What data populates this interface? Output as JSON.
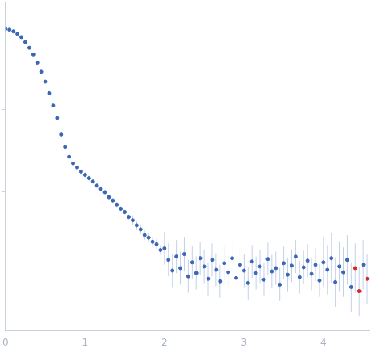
{
  "chart_data": {
    "type": "scatter",
    "x": [
      0.0,
      0.05,
      0.1,
      0.15,
      0.2,
      0.25,
      0.3,
      0.35,
      0.4,
      0.45,
      0.5,
      0.55,
      0.6,
      0.65,
      0.7,
      0.75,
      0.8,
      0.85,
      0.9,
      0.95,
      1.0,
      1.05,
      1.1,
      1.15,
      1.2,
      1.25,
      1.3,
      1.35,
      1.4,
      1.45,
      1.5,
      1.55,
      1.6,
      1.65,
      1.7,
      1.75,
      1.8,
      1.85,
      1.9,
      1.95,
      2.0,
      2.05,
      2.1,
      2.15,
      2.2,
      2.25,
      2.3,
      2.35,
      2.4,
      2.45,
      2.5,
      2.55,
      2.6,
      2.65,
      2.7,
      2.75,
      2.8,
      2.85,
      2.9,
      2.95,
      3.0,
      3.05,
      3.1,
      3.15,
      3.2,
      3.25,
      3.3,
      3.35,
      3.4,
      3.45,
      3.5,
      3.55,
      3.6,
      3.65,
      3.7,
      3.75,
      3.8,
      3.85,
      3.9,
      3.95,
      4.0,
      4.05,
      4.1,
      4.15,
      4.2,
      4.25,
      4.3,
      4.35,
      4.4,
      4.45,
      4.5,
      4.55
    ],
    "values": [
      2.98,
      2.97,
      2.95,
      2.92,
      2.88,
      2.82,
      2.75,
      2.67,
      2.57,
      2.46,
      2.34,
      2.2,
      2.05,
      1.9,
      1.7,
      1.55,
      1.43,
      1.35,
      1.3,
      1.25,
      1.21,
      1.17,
      1.13,
      1.08,
      1.04,
      1.0,
      0.94,
      0.9,
      0.85,
      0.8,
      0.76,
      0.7,
      0.66,
      0.6,
      0.55,
      0.48,
      0.45,
      0.4,
      0.37,
      0.3,
      0.32,
      0.18,
      0.05,
      0.22,
      0.08,
      0.25,
      -0.02,
      0.15,
      0.02,
      0.2,
      0.1,
      -0.05,
      0.18,
      0.06,
      -0.08,
      0.14,
      0.03,
      0.2,
      -0.04,
      0.12,
      0.05,
      -0.1,
      0.16,
      0.02,
      0.1,
      -0.06,
      0.19,
      0.04,
      0.08,
      -0.12,
      0.14,
      0.0,
      0.11,
      0.22,
      -0.03,
      0.09,
      0.17,
      0.01,
      0.12,
      -0.07,
      0.15,
      0.06,
      0.2,
      -0.09,
      0.1,
      0.03,
      0.18,
      -0.15,
      0.08,
      -0.2,
      0.12,
      -0.05
    ],
    "errors": [
      0.01,
      0.01,
      0.01,
      0.01,
      0.01,
      0.01,
      0.01,
      0.01,
      0.01,
      0.01,
      0.01,
      0.01,
      0.01,
      0.01,
      0.01,
      0.01,
      0.01,
      0.01,
      0.01,
      0.01,
      0.03,
      0.03,
      0.03,
      0.03,
      0.03,
      0.03,
      0.03,
      0.03,
      0.03,
      0.03,
      0.03,
      0.03,
      0.06,
      0.06,
      0.06,
      0.06,
      0.06,
      0.06,
      0.06,
      0.06,
      0.2,
      0.2,
      0.2,
      0.2,
      0.2,
      0.2,
      0.2,
      0.2,
      0.2,
      0.2,
      0.2,
      0.2,
      0.2,
      0.2,
      0.2,
      0.2,
      0.2,
      0.2,
      0.2,
      0.2,
      0.2,
      0.2,
      0.2,
      0.2,
      0.2,
      0.2,
      0.2,
      0.2,
      0.2,
      0.2,
      0.2,
      0.2,
      0.2,
      0.2,
      0.2,
      0.2,
      0.2,
      0.2,
      0.2,
      0.2,
      0.3,
      0.3,
      0.3,
      0.3,
      0.3,
      0.3,
      0.3,
      0.3,
      0.3,
      0.3,
      0.3,
      0.3
    ],
    "colors": [
      "#3a66b5",
      "#3a66b5",
      "#3a66b5",
      "#3a66b5",
      "#3a66b5",
      "#3a66b5",
      "#3a66b5",
      "#3a66b5",
      "#3a66b5",
      "#3a66b5",
      "#3a66b5",
      "#3a66b5",
      "#3a66b5",
      "#3a66b5",
      "#3a66b5",
      "#3a66b5",
      "#3a66b5",
      "#3a66b5",
      "#3a66b5",
      "#3a66b5",
      "#3a66b5",
      "#3a66b5",
      "#3a66b5",
      "#3a66b5",
      "#3a66b5",
      "#3a66b5",
      "#3a66b5",
      "#3a66b5",
      "#3a66b5",
      "#3a66b5",
      "#3a66b5",
      "#3a66b5",
      "#3a66b5",
      "#3a66b5",
      "#3a66b5",
      "#3a66b5",
      "#3a66b5",
      "#3a66b5",
      "#3a66b5",
      "#3a66b5",
      "#3a66b5",
      "#3a66b5",
      "#3a66b5",
      "#3a66b5",
      "#3a66b5",
      "#3a66b5",
      "#3a66b5",
      "#3a66b5",
      "#3a66b5",
      "#3a66b5",
      "#3a66b5",
      "#3a66b5",
      "#3a66b5",
      "#3a66b5",
      "#3a66b5",
      "#3a66b5",
      "#3a66b5",
      "#3a66b5",
      "#3a66b5",
      "#3a66b5",
      "#3a66b5",
      "#3a66b5",
      "#3a66b5",
      "#3a66b5",
      "#3a66b5",
      "#3a66b5",
      "#3a66b5",
      "#3a66b5",
      "#3a66b5",
      "#3a66b5",
      "#3a66b5",
      "#3a66b5",
      "#3a66b5",
      "#3a66b5",
      "#3a66b5",
      "#3a66b5",
      "#3a66b5",
      "#3a66b5",
      "#3a66b5",
      "#3a66b5",
      "#3a66b5",
      "#3a66b5",
      "#3a66b5",
      "#3a66b5",
      "#3a66b5",
      "#3a66b5",
      "#3a66b5",
      "#3a66b5",
      "#d62728",
      "#d62728",
      "#3a66b5",
      "#d62728"
    ],
    "xlim": [
      0,
      4.58
    ],
    "xticks": [
      0,
      1,
      2,
      3,
      4
    ],
    "ylim": [
      -0.68,
      3.3
    ],
    "yticks": [
      1,
      2,
      3
    ],
    "tick_labels": "x",
    "grid": false
  }
}
